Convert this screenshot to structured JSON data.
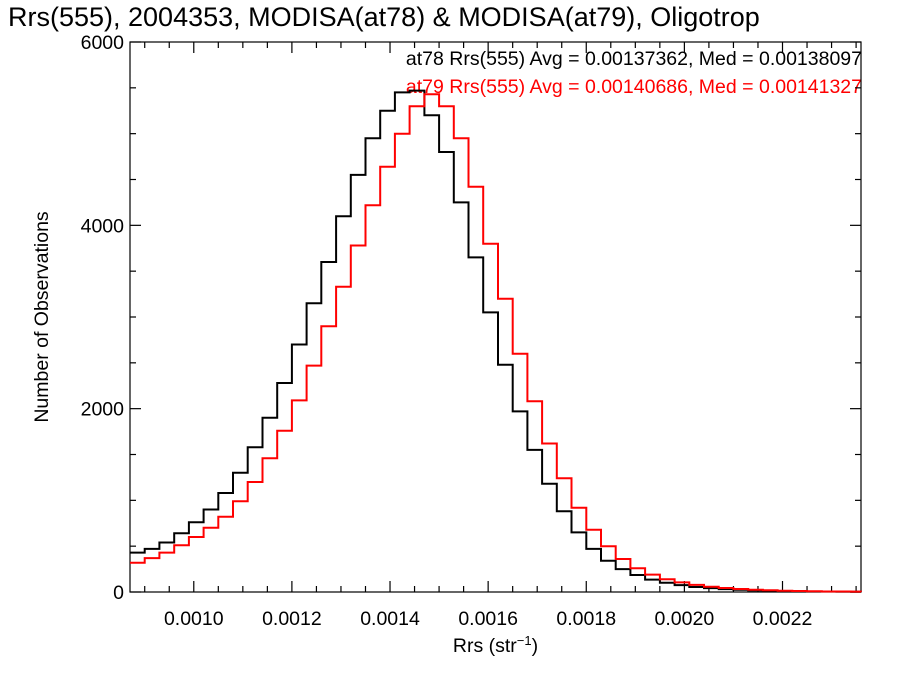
{
  "chart_data": {
    "type": "histogram_step",
    "title": "Rrs(555), 2004353, MODISA(at78) & MODISA(at79), Oligotrop",
    "xlabel": "Rrs (str",
    "xlabel_exp": "−1",
    "xlabel_close": ")",
    "ylabel": "Number of Observations",
    "xlim": [
      0.00087,
      0.00236
    ],
    "ylim": [
      0,
      6000
    ],
    "xticks": [
      0.001,
      0.0012,
      0.0014,
      0.0016,
      0.0018,
      0.002,
      0.0022
    ],
    "xtick_labels": [
      "0.0010",
      "0.0012",
      "0.0014",
      "0.0016",
      "0.0018",
      "0.0020",
      "0.0022"
    ],
    "yticks": [
      0,
      2000,
      4000,
      6000
    ],
    "ytick_labels": [
      "0",
      "2000",
      "4000",
      "6000"
    ],
    "legend": [
      {
        "text": "at78 Rrs(555) Avg = 0.00137362, Med = 0.00138097",
        "color": "#000000"
      },
      {
        "text": "at79 Rrs(555) Avg = 0.00140686, Med = 0.00141327",
        "color": "#ff0000"
      }
    ],
    "series": [
      {
        "name": "at78",
        "color": "#000000",
        "x": [
          0.00087,
          0.0009,
          0.00093,
          0.00096,
          0.00099,
          0.00102,
          0.00105,
          0.00108,
          0.00111,
          0.00114,
          0.00117,
          0.0012,
          0.00123,
          0.00126,
          0.00129,
          0.00132,
          0.00135,
          0.00138,
          0.00141,
          0.00144,
          0.00147,
          0.0015,
          0.00153,
          0.00156,
          0.00159,
          0.00162,
          0.00165,
          0.00168,
          0.00171,
          0.00174,
          0.00177,
          0.0018,
          0.00183,
          0.00186,
          0.00189,
          0.00192,
          0.00195,
          0.00198,
          0.00201,
          0.00204,
          0.00207,
          0.0021,
          0.00213,
          0.00216,
          0.00219,
          0.00222,
          0.00225,
          0.00228,
          0.00231,
          0.00234,
          0.00236
        ],
        "y": [
          430,
          470,
          540,
          640,
          760,
          900,
          1080,
          1300,
          1580,
          1900,
          2280,
          2700,
          3150,
          3600,
          4100,
          4550,
          4950,
          5250,
          5450,
          5470,
          5200,
          4800,
          4250,
          3650,
          3050,
          2480,
          1970,
          1550,
          1180,
          880,
          650,
          470,
          340,
          250,
          185,
          135,
          100,
          75,
          55,
          42,
          32,
          24,
          18,
          14,
          10,
          8,
          6,
          5,
          4,
          3,
          3
        ]
      },
      {
        "name": "at79",
        "color": "#ff0000",
        "x": [
          0.00087,
          0.0009,
          0.00093,
          0.00096,
          0.00099,
          0.00102,
          0.00105,
          0.00108,
          0.00111,
          0.00114,
          0.00117,
          0.0012,
          0.00123,
          0.00126,
          0.00129,
          0.00132,
          0.00135,
          0.00138,
          0.00141,
          0.00144,
          0.00147,
          0.0015,
          0.00153,
          0.00156,
          0.00159,
          0.00162,
          0.00165,
          0.00168,
          0.00171,
          0.00174,
          0.00177,
          0.0018,
          0.00183,
          0.00186,
          0.00189,
          0.00192,
          0.00195,
          0.00198,
          0.00201,
          0.00204,
          0.00207,
          0.0021,
          0.00213,
          0.00216,
          0.00219,
          0.00222,
          0.00225,
          0.00228,
          0.00231,
          0.00234,
          0.00236
        ],
        "y": [
          320,
          370,
          430,
          510,
          600,
          700,
          820,
          990,
          1200,
          1460,
          1760,
          2090,
          2470,
          2900,
          3330,
          3780,
          4220,
          4640,
          5000,
          5300,
          5430,
          5300,
          4950,
          4420,
          3800,
          3200,
          2600,
          2080,
          1620,
          1240,
          920,
          680,
          500,
          360,
          260,
          190,
          140,
          105,
          78,
          58,
          44,
          33,
          25,
          19,
          14,
          11,
          8,
          6,
          5,
          4,
          3
        ]
      }
    ]
  }
}
